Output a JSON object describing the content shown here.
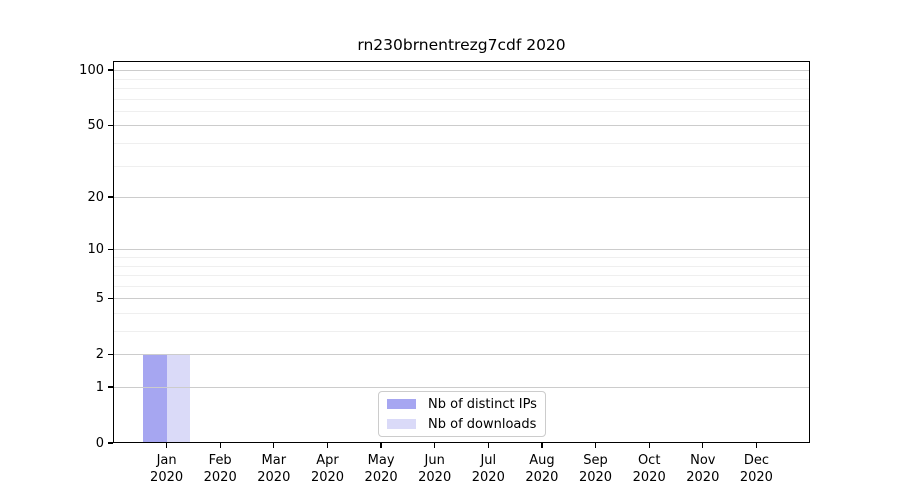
{
  "chart_data": {
    "type": "bar",
    "title": "rn230brnentrezg7cdf 2020",
    "categories": [
      "Jan 2020",
      "Feb 2020",
      "Mar 2020",
      "Apr 2020",
      "May 2020",
      "Jun 2020",
      "Jul 2020",
      "Aug 2020",
      "Sep 2020",
      "Oct 2020",
      "Nov 2020",
      "Dec 2020"
    ],
    "series": [
      {
        "name": "Nb of distinct IPs",
        "color": "#a6a6f1",
        "values": [
          2,
          0,
          0,
          0,
          0,
          0,
          0,
          0,
          0,
          0,
          0,
          0
        ]
      },
      {
        "name": "Nb of downloads",
        "color": "#dadaf8",
        "values": [
          2,
          0,
          0,
          0,
          0,
          0,
          0,
          0,
          0,
          0,
          0,
          0
        ]
      }
    ],
    "xlabel": "",
    "ylabel": "",
    "y_scale": "log1p",
    "yticks_major": [
      0,
      1,
      2,
      5,
      10,
      20,
      50,
      100
    ],
    "yticks_minor": [
      3,
      4,
      6,
      7,
      8,
      9,
      30,
      40,
      60,
      70,
      80,
      90
    ],
    "ylim_top": 112,
    "grid": "horizontal",
    "legend_position": "bottom-center",
    "colors": {
      "grid_major": "#cccccc",
      "grid_minor": "#efefef",
      "axis": "#000000",
      "background": "#ffffff"
    }
  }
}
